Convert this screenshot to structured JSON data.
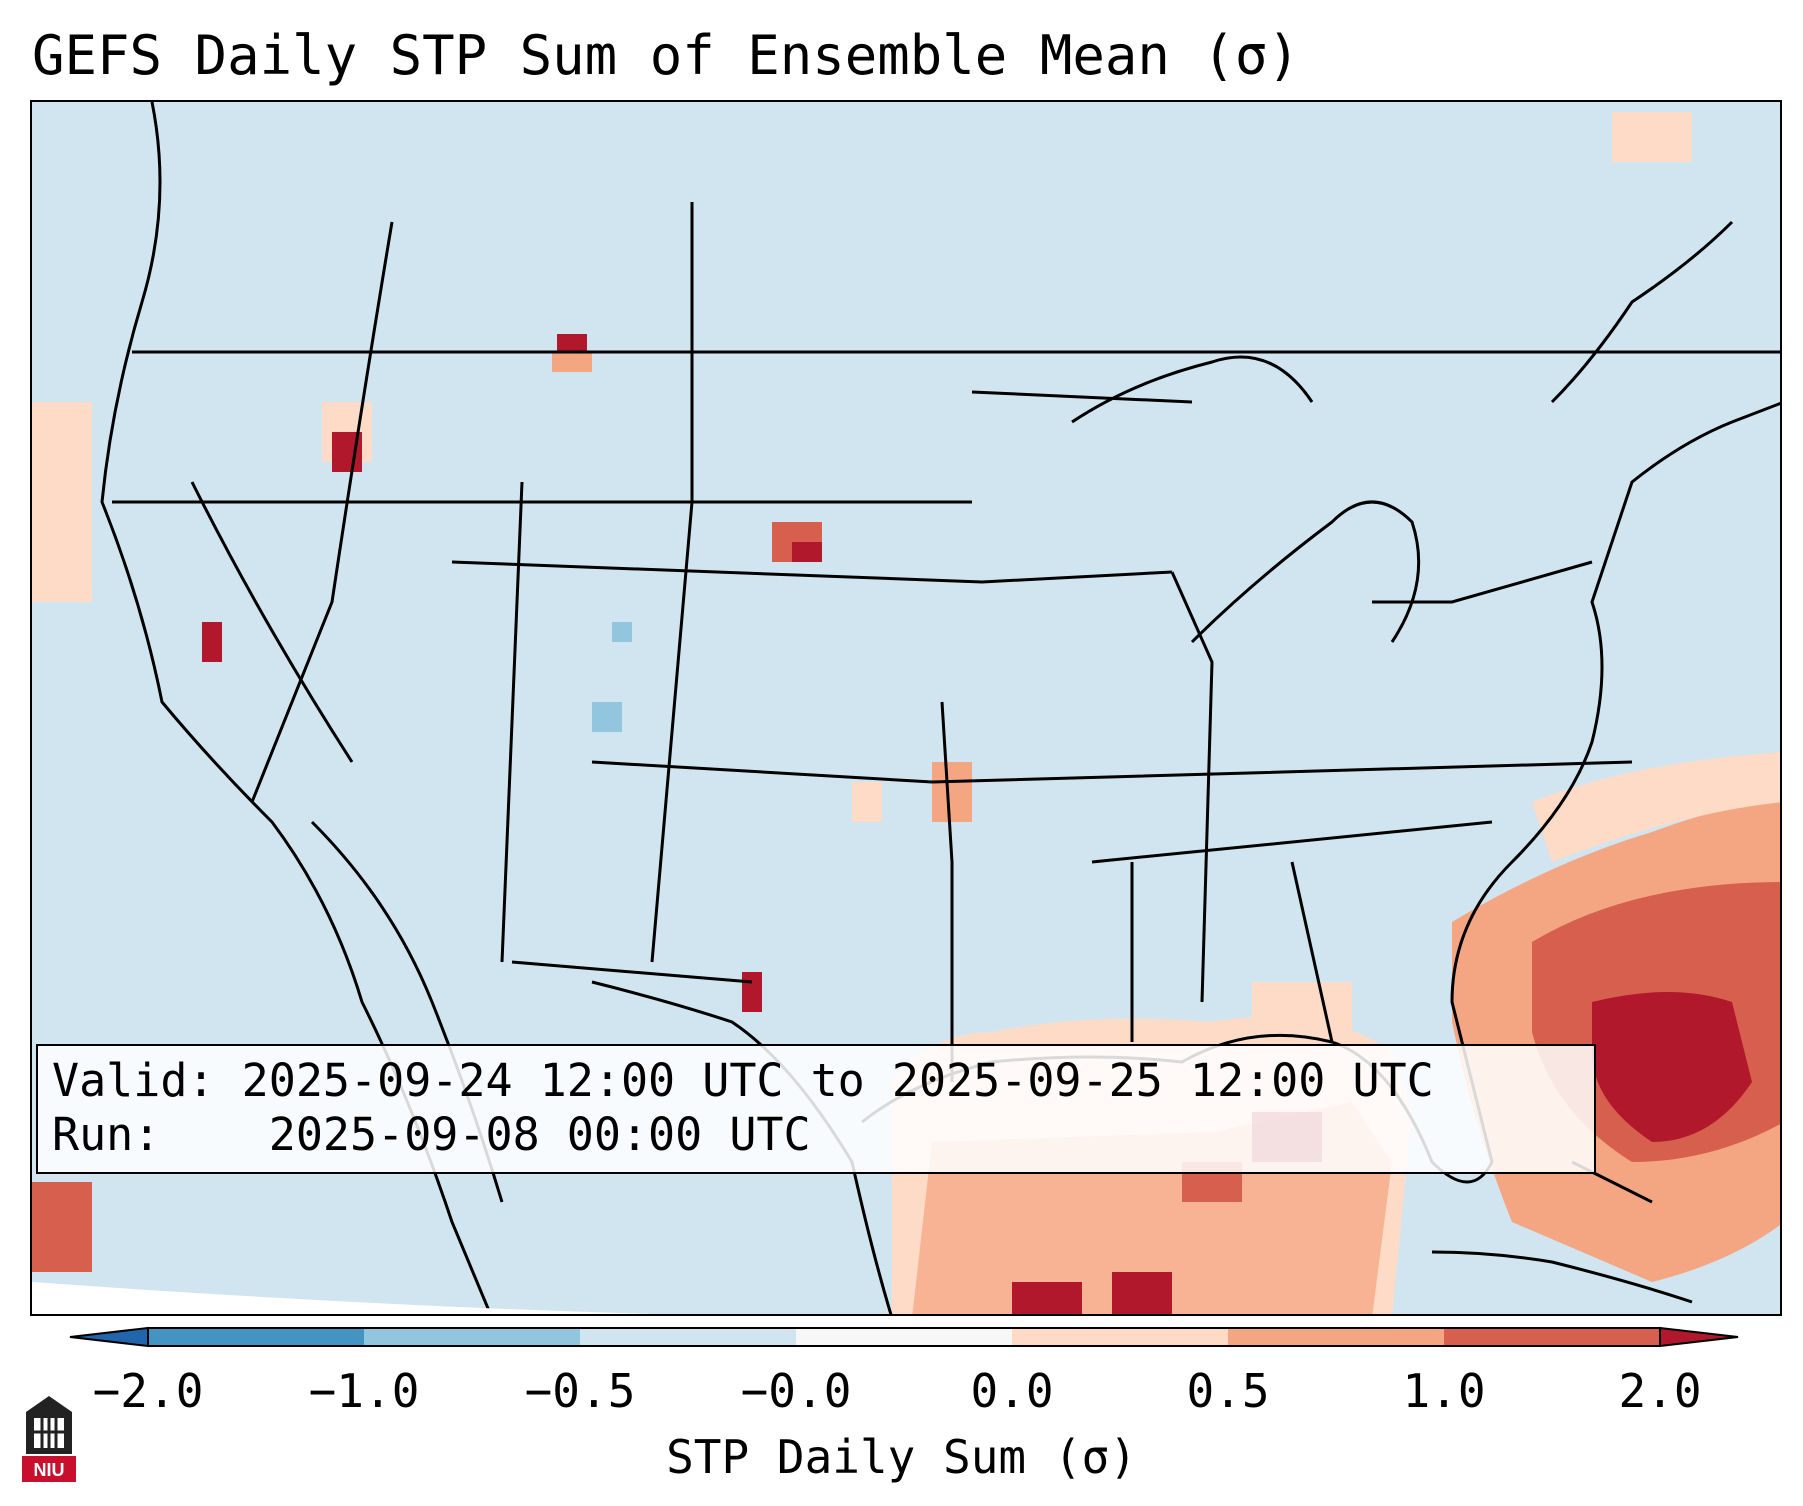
{
  "title": "GEFS Daily STP Sum of Ensemble Mean (σ)",
  "info": {
    "valid_label": "Valid:",
    "valid_value": "2025-09-24 12:00 UTC to 2025-09-25 12:00 UTC",
    "run_label": "Run:",
    "run_value": "2025-09-08 00:00 UTC"
  },
  "colorbar": {
    "label": "STP Daily Sum (σ)",
    "ticks": [
      "−2.0",
      "−1.0",
      "−0.5",
      "−0.0",
      "0.0",
      "0.5",
      "1.0",
      "2.0"
    ],
    "colors": [
      "#2166ac",
      "#4393c3",
      "#92c5de",
      "#d1e5f0",
      "#f7f7f7",
      "#fddbc7",
      "#f4a582",
      "#d6604d",
      "#b2182b"
    ],
    "extend": "both"
  },
  "map": {
    "region": "Continental United States",
    "background_color": "#d1e5f0",
    "hotspots": [
      {
        "region": "Gulf of Mexico",
        "level": "0.5 to 1.0"
      },
      {
        "region": "Western Atlantic off Southeast coast",
        "level": "1.0 to 2.0"
      },
      {
        "region": "South Dakota",
        "level": "1.0 to 2.0"
      },
      {
        "region": "Idaho / Oregon border",
        "level": "1.0 to 2.0"
      }
    ]
  },
  "logo": {
    "text": "NIU"
  },
  "icons": [
    "niu-logo-icon"
  ]
}
